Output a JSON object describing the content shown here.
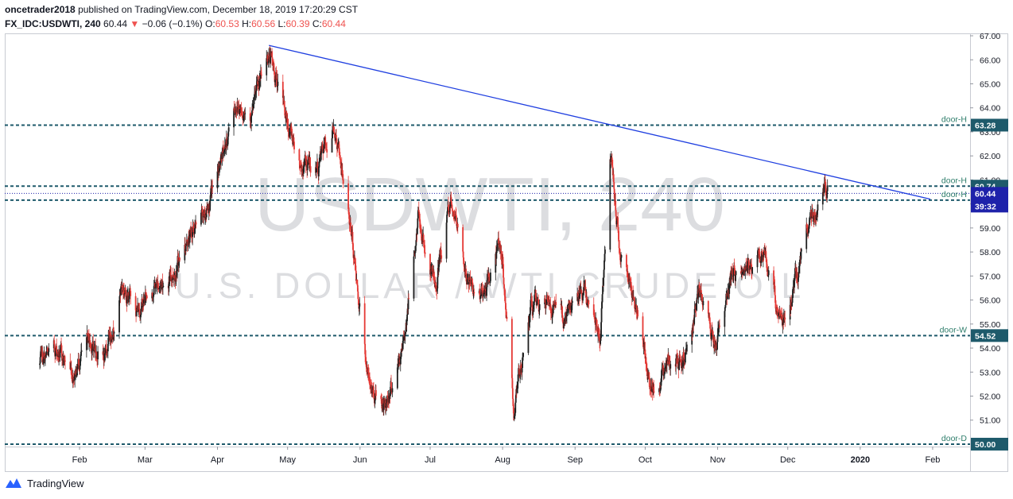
{
  "header": {
    "author": "oncetrader2018",
    "published_text": "published on TradingView.com, December 18, 2019 17:20:29 CST",
    "symbol": "FX_IDC:USDWTI, 240",
    "last": "60.44",
    "change_arrow": "▼",
    "change": "−0.06 (−0.1%)",
    "o_label": "O:",
    "o_value": "60.53",
    "h_label": "H:",
    "h_value": "60.56",
    "l_label": "L:",
    "l_value": "60.39",
    "c_label": "C:",
    "c_value": "60.44"
  },
  "watermark": {
    "symbol": "USDWTI, 240",
    "description": "U.S. DOLLAR / WTI CRUDE OIL"
  },
  "footer": {
    "brand": "TradingView"
  },
  "colors": {
    "up": "#1f1f1f",
    "down": "#e53935",
    "trendline": "#1f3fe0",
    "level": "#1e5a6b",
    "current": "#1e22aa",
    "label_text": "#2e7d6b"
  },
  "chart_data": {
    "type": "candlestick",
    "ylim": [
      49.9,
      67.1
    ],
    "y_ticks": [
      "51.00",
      "52.00",
      "53.00",
      "54.00",
      "55.00",
      "56.00",
      "57.00",
      "58.00",
      "59.00",
      "60.00",
      "61.00",
      "62.00",
      "63.00",
      "64.00",
      "65.00",
      "66.00",
      "67.00"
    ],
    "x_ticks": [
      "Feb",
      "Mar",
      "Apr",
      "May",
      "Jun",
      "Jul",
      "Aug",
      "Sep",
      "Oct",
      "Nov",
      "Dec",
      "2020",
      "Feb"
    ],
    "levels": [
      {
        "name": "door-H",
        "value": 63.28,
        "label": "63.28"
      },
      {
        "name": "door-H",
        "value": 60.74,
        "label": "60.74"
      },
      {
        "name": "door-H",
        "value": 60.16,
        "label": ""
      },
      {
        "name": "door-W",
        "value": 54.52,
        "label": "54.52"
      },
      {
        "name": "door-D",
        "value": 50.0,
        "label": "50.00"
      }
    ],
    "current_price": {
      "value": 60.44,
      "label": "60.44",
      "countdown": "39:32"
    },
    "trendline": {
      "from": {
        "date": "2019-04-23",
        "value": 66.6
      },
      "to": {
        "date": "2020-01-31",
        "value": 60.2
      }
    },
    "start_date": "2019-01-15",
    "end_date": "2019-12-18",
    "candle_hours": 4,
    "anchors": [
      {
        "date": "2019-01-15",
        "value": 53.3
      },
      {
        "date": "2019-01-22",
        "value": 53.9
      },
      {
        "date": "2019-01-29",
        "value": 53.0
      },
      {
        "date": "2019-02-05",
        "value": 54.2
      },
      {
        "date": "2019-02-12",
        "value": 53.6
      },
      {
        "date": "2019-02-19",
        "value": 56.6
      },
      {
        "date": "2019-02-26",
        "value": 55.6
      },
      {
        "date": "2019-03-05",
        "value": 56.6
      },
      {
        "date": "2019-03-12",
        "value": 56.9
      },
      {
        "date": "2019-03-19",
        "value": 58.5
      },
      {
        "date": "2019-03-26",
        "value": 59.4
      },
      {
        "date": "2019-04-02",
        "value": 61.5
      },
      {
        "date": "2019-04-09",
        "value": 64.2
      },
      {
        "date": "2019-04-16",
        "value": 63.9
      },
      {
        "date": "2019-04-23",
        "value": 66.3
      },
      {
        "date": "2019-04-30",
        "value": 63.7
      },
      {
        "date": "2019-05-07",
        "value": 61.6
      },
      {
        "date": "2019-05-14",
        "value": 61.5
      },
      {
        "date": "2019-05-21",
        "value": 63.3
      },
      {
        "date": "2019-05-28",
        "value": 59.0
      },
      {
        "date": "2019-06-05",
        "value": 52.4
      },
      {
        "date": "2019-06-12",
        "value": 51.7
      },
      {
        "date": "2019-06-19",
        "value": 53.8
      },
      {
        "date": "2019-06-26",
        "value": 59.5
      },
      {
        "date": "2019-07-03",
        "value": 56.4
      },
      {
        "date": "2019-07-10",
        "value": 60.3
      },
      {
        "date": "2019-07-17",
        "value": 56.8
      },
      {
        "date": "2019-07-24",
        "value": 56.2
      },
      {
        "date": "2019-07-31",
        "value": 58.4
      },
      {
        "date": "2019-08-06",
        "value": 51.4
      },
      {
        "date": "2019-08-13",
        "value": 55.7
      },
      {
        "date": "2019-08-20",
        "value": 55.8
      },
      {
        "date": "2019-08-27",
        "value": 55.3
      },
      {
        "date": "2019-09-05",
        "value": 56.2
      },
      {
        "date": "2019-09-12",
        "value": 54.8
      },
      {
        "date": "2019-09-16",
        "value": 62.2
      },
      {
        "date": "2019-09-20",
        "value": 58.3
      },
      {
        "date": "2019-09-27",
        "value": 55.8
      },
      {
        "date": "2019-10-03",
        "value": 52.3
      },
      {
        "date": "2019-10-10",
        "value": 53.3
      },
      {
        "date": "2019-10-17",
        "value": 53.6
      },
      {
        "date": "2019-10-24",
        "value": 56.2
      },
      {
        "date": "2019-10-31",
        "value": 54.2
      },
      {
        "date": "2019-11-07",
        "value": 57.0
      },
      {
        "date": "2019-11-14",
        "value": 57.1
      },
      {
        "date": "2019-11-21",
        "value": 58.0
      },
      {
        "date": "2019-11-28",
        "value": 55.2
      },
      {
        "date": "2019-12-03",
        "value": 56.2
      },
      {
        "date": "2019-12-10",
        "value": 59.2
      },
      {
        "date": "2019-12-16",
        "value": 60.4
      },
      {
        "date": "2019-12-18",
        "value": 60.44
      }
    ]
  }
}
